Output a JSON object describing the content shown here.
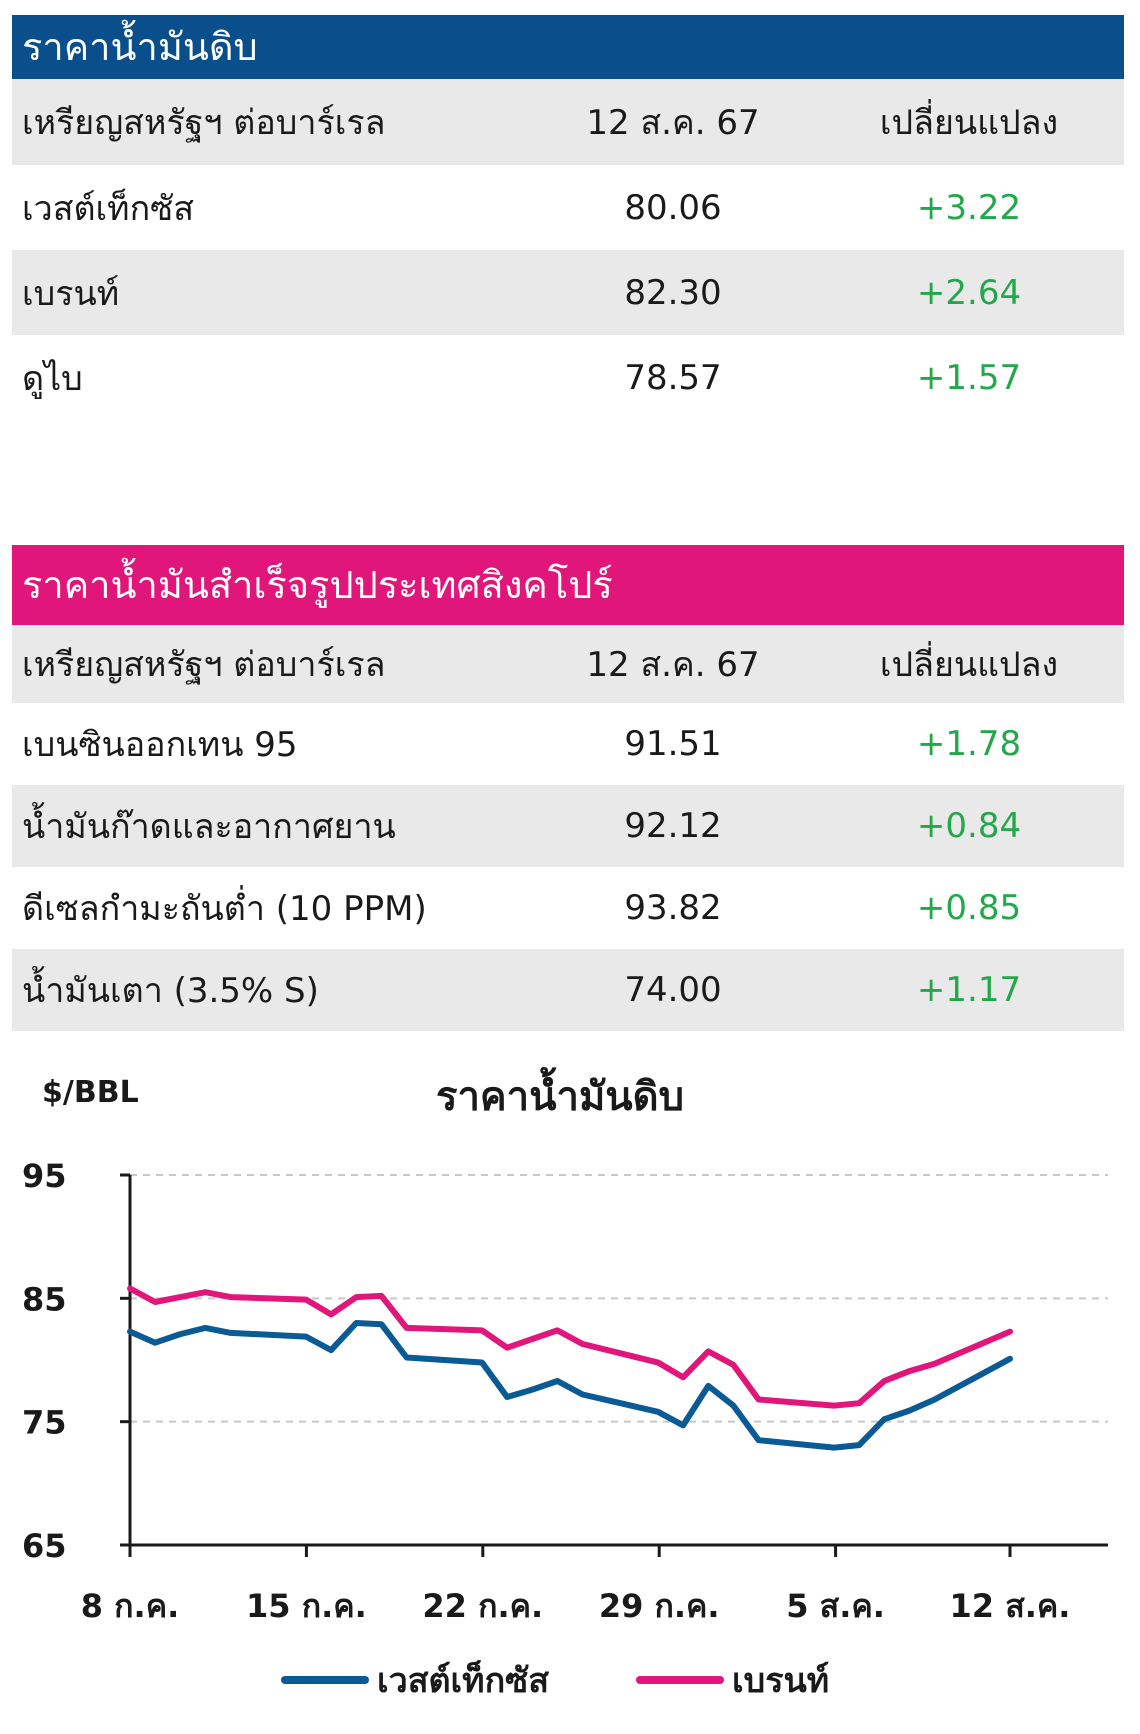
{
  "crude_table": {
    "title": "ราคาน้ำมันดิบ",
    "header": {
      "unit": "เหรียญสหรัฐฯ ต่อบาร์เรล",
      "date": "12 ส.ค. 67",
      "change": "เปลี่ยนแปลง"
    },
    "rows": [
      {
        "name": "เวสต์เท็กซัส",
        "value": "80.06",
        "change": "+3.22"
      },
      {
        "name": "เบรนท์",
        "value": "82.30",
        "change": "+2.64"
      },
      {
        "name": "ดูไบ",
        "value": "78.57",
        "change": "+1.57"
      }
    ]
  },
  "singapore_table": {
    "title": "ราคาน้ำมันสำเร็จรูปประเทศสิงคโปร์",
    "header": {
      "unit": "เหรียญสหรัฐฯ ต่อบาร์เรล",
      "date": "12 ส.ค. 67",
      "change": "เปลี่ยนแปลง"
    },
    "rows": [
      {
        "name": "เบนซินออกเทน 95",
        "value": "91.51",
        "change": "+1.78"
      },
      {
        "name": "น้ำมันก๊าดและอากาศยาน",
        "value": "92.12",
        "change": "+0.84"
      },
      {
        "name": "ดีเซลกำมะถันต่ำ (10 PPM)",
        "value": "93.82",
        "change": "+0.85"
      },
      {
        "name": "น้ำมันเตา (3.5% S)",
        "value": "74.00",
        "change": "+1.17"
      }
    ]
  },
  "colors": {
    "header_blue": "#0a4f8c",
    "header_pink": "#e0167a",
    "positive_change": "#22a84a",
    "wti_line": "#0a5a95",
    "brent_line": "#e0167a"
  },
  "chart_data": {
    "type": "line",
    "title": "ราคาน้ำมันดิบ",
    "ylabel": "$/BBL",
    "ylim": [
      65,
      95
    ],
    "yticks": [
      95,
      85,
      75,
      65
    ],
    "x_tick_labels": [
      "8 ก.ค.",
      "15 ก.ค.",
      "22 ก.ค.",
      "29 ก.ค.",
      "5 ส.ค.",
      "12 ส.ค."
    ],
    "x": [
      "2024-07-08",
      "2024-07-09",
      "2024-07-10",
      "2024-07-11",
      "2024-07-12",
      "2024-07-15",
      "2024-07-16",
      "2024-07-17",
      "2024-07-18",
      "2024-07-19",
      "2024-07-22",
      "2024-07-23",
      "2024-07-24",
      "2024-07-25",
      "2024-07-26",
      "2024-07-29",
      "2024-07-30",
      "2024-07-31",
      "2024-08-01",
      "2024-08-02",
      "2024-08-05",
      "2024-08-06",
      "2024-08-07",
      "2024-08-08",
      "2024-08-09",
      "2024-08-12"
    ],
    "grid": "dashed horizontal",
    "legend_position": "bottom",
    "series": [
      {
        "name": "เวสต์เท็กซัส",
        "color": "#0a5a95",
        "values": [
          82.3,
          81.4,
          82.1,
          82.6,
          82.2,
          81.9,
          80.8,
          83.0,
          82.9,
          80.2,
          79.8,
          77.0,
          77.6,
          78.3,
          77.2,
          75.8,
          74.7,
          77.9,
          76.3,
          73.5,
          72.9,
          73.1,
          75.2,
          75.9,
          76.8,
          80.1
        ]
      },
      {
        "name": "เบรนท์",
        "color": "#e0167a",
        "values": [
          85.8,
          84.7,
          85.1,
          85.5,
          85.1,
          84.9,
          83.7,
          85.1,
          85.2,
          82.6,
          82.4,
          81.0,
          81.7,
          82.4,
          81.3,
          79.8,
          78.6,
          80.7,
          79.6,
          76.8,
          76.3,
          76.5,
          78.3,
          79.1,
          79.7,
          82.3
        ]
      }
    ]
  }
}
